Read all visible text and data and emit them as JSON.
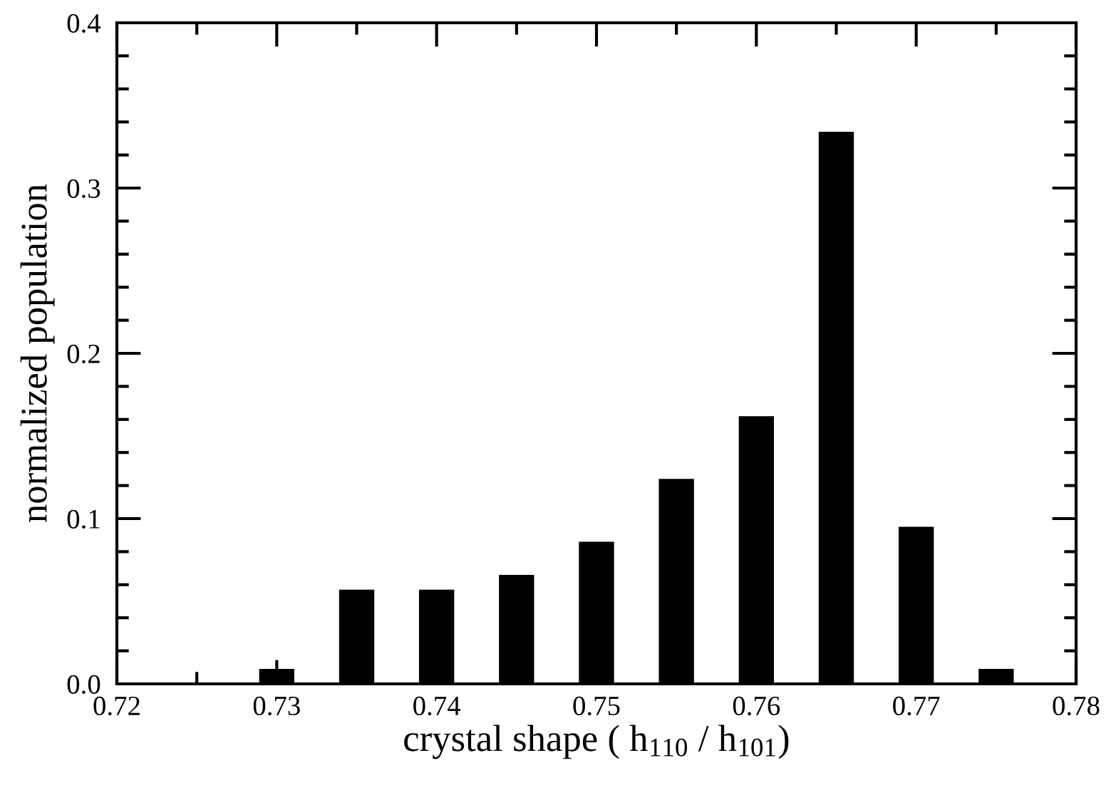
{
  "chart_data": {
    "type": "bar",
    "xlabel": "crystal shape ( h$_{110}$ / h$_{101}$)",
    "ylabel": "normalized population",
    "x": [
      0.73,
      0.735,
      0.74,
      0.745,
      0.75,
      0.755,
      0.76,
      0.765,
      0.77,
      0.775
    ],
    "values": [
      0.009,
      0.057,
      0.057,
      0.066,
      0.086,
      0.124,
      0.162,
      0.334,
      0.095,
      0.009
    ],
    "color": "#000000",
    "xlim": [
      0.72,
      0.78
    ],
    "xticks": [
      0.72,
      {
        "value": 0.725,
        "label": null
      },
      0.73,
      {
        "value": 0.735,
        "label": null
      },
      0.74,
      {
        "value": 0.745,
        "label": null
      },
      0.75,
      {
        "value": 0.755,
        "label": null
      },
      0.76,
      {
        "value": 0.765,
        "label": null
      },
      0.77,
      {
        "value": 0.775,
        "label": null
      },
      0.78
    ],
    "ylim": [
      0.0,
      0.4
    ],
    "yticks": [
      {
        "value": 0.0,
        "label": "0.0"
      },
      {
        "value": 0.02,
        "label": null
      },
      {
        "value": 0.04,
        "label": null
      },
      {
        "value": 0.06,
        "label": null
      },
      {
        "value": 0.08,
        "label": null
      },
      0.1,
      {
        "value": 0.12,
        "label": null
      },
      {
        "value": 0.14,
        "label": null
      },
      {
        "value": 0.16,
        "label": null
      },
      {
        "value": 0.18,
        "label": null
      },
      0.2,
      {
        "value": 0.22,
        "label": null
      },
      {
        "value": 0.24,
        "label": null
      },
      {
        "value": 0.26,
        "label": null
      },
      {
        "value": 0.28,
        "label": null
      },
      0.3,
      {
        "value": 0.32,
        "label": null
      },
      {
        "value": 0.34,
        "label": null
      },
      {
        "value": 0.36,
        "label": null
      },
      {
        "value": 0.38,
        "label": null
      },
      0.4
    ],
    "grid": false
  }
}
